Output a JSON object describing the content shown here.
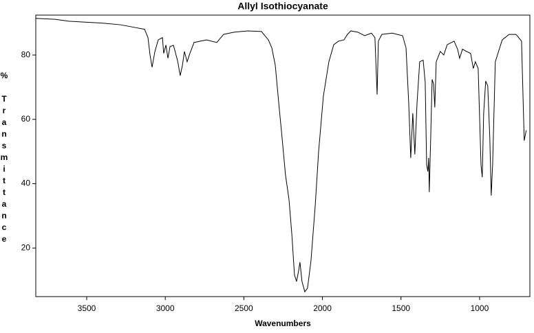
{
  "chart_data": {
    "type": "line",
    "title": "Allyl Isothiocyanate",
    "x_label": "Wavenumbers",
    "y_label": "% Transmittance",
    "xlim": [
      3824,
      680
    ],
    "ylim": [
      4.9,
      92.4
    ],
    "xticks": [
      3500,
      3000,
      2500,
      2000,
      1500,
      1000
    ],
    "yticks": [
      20,
      40,
      60,
      80
    ],
    "series": [
      {
        "name": "Allyl Isothiocyanate",
        "color": "#000000",
        "x": [
          3824,
          3701,
          3614,
          3395,
          3286,
          3198,
          3132,
          3110,
          3097,
          3084,
          3066,
          3045,
          3018,
          3010,
          2996,
          2983,
          2970,
          2948,
          2922,
          2905,
          2891,
          2878,
          2861,
          2847,
          2817,
          2738,
          2672,
          2629,
          2563,
          2475,
          2388,
          2344,
          2322,
          2300,
          2278,
          2257,
          2235,
          2213,
          2195,
          2178,
          2165,
          2152,
          2143,
          2130,
          2112,
          2095,
          2073,
          2046,
          2024,
          1994,
          1959,
          1928,
          1898,
          1863,
          1841,
          1819,
          1775,
          1731,
          1688,
          1666,
          1652,
          1644,
          1622,
          1556,
          1490,
          1468,
          1451,
          1438,
          1425,
          1412,
          1398,
          1381,
          1359,
          1346,
          1337,
          1329,
          1324,
          1320,
          1311,
          1302,
          1293,
          1285,
          1276,
          1250,
          1228,
          1206,
          1162,
          1140,
          1127,
          1109,
          1083,
          1057,
          1040,
          1027,
          1009,
          991,
          983,
          974,
          961,
          948,
          935,
          926,
          917,
          900,
          856,
          812,
          768,
          733,
          716,
          703
        ],
        "values": [
          91.4,
          91.1,
          90.5,
          89.9,
          89.4,
          88.6,
          88.0,
          85.4,
          80,
          76.2,
          81.1,
          84.7,
          85.4,
          80.5,
          83.1,
          79.0,
          82.6,
          83.0,
          78.3,
          73.6,
          76.8,
          81.1,
          77.9,
          80,
          83.9,
          84.7,
          83.9,
          86.4,
          87.1,
          87.5,
          87.3,
          84.7,
          82.2,
          76.8,
          65.1,
          54.4,
          42.7,
          35.2,
          24.5,
          11.7,
          9.6,
          12.8,
          15.6,
          9.6,
          6.4,
          7.5,
          16.0,
          33.1,
          50.2,
          67.2,
          77.9,
          83.2,
          84.3,
          84.7,
          86.4,
          87.5,
          87.1,
          86.0,
          86.8,
          85.4,
          67.7,
          84.3,
          86.4,
          86.8,
          86.0,
          82.2,
          65.1,
          48.0,
          61.9,
          49.1,
          65.1,
          77.9,
          78.4,
          71.5,
          45.9,
          43.8,
          48.0,
          37.4,
          54.4,
          72.4,
          71.0,
          63.7,
          77.9,
          81.1,
          80.0,
          83.2,
          84.3,
          81.8,
          79.0,
          81.8,
          81.1,
          80.5,
          75.8,
          77.9,
          75.8,
          45.9,
          42.0,
          61.9,
          71.9,
          70.4,
          54.4,
          36.3,
          45.9,
          77.9,
          84.7,
          86.4,
          86.4,
          84.3,
          53.4,
          56.6
        ]
      }
    ]
  }
}
